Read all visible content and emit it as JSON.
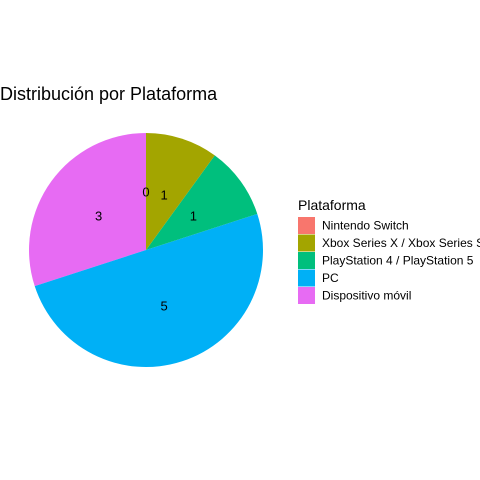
{
  "chart_data": {
    "type": "pie",
    "title": "Distribución por Plataforma",
    "legend_title": "Plataforma",
    "legend_position": "right",
    "categories": [
      "Nintendo Switch",
      "Xbox Series X / Xbox Series S",
      "PlayStation 4 / PlayStation 5",
      "PC",
      "Dispositivo móvil"
    ],
    "values": [
      0,
      1,
      1,
      5,
      3
    ],
    "colors": [
      "#F8766D",
      "#A3A500",
      "#00BF7D",
      "#00B0F6",
      "#E76BF3"
    ]
  }
}
